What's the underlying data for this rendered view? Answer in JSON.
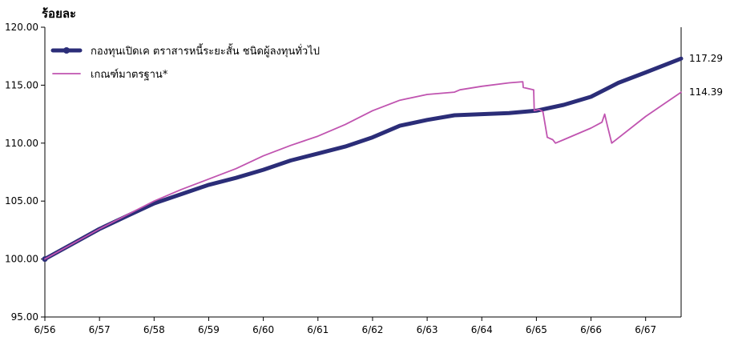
{
  "chart_data": {
    "type": "line",
    "title": "",
    "ylabel": "ร้อยละ",
    "xlabel": "",
    "ylim": [
      95,
      120
    ],
    "y_ticks": [
      "95.00",
      "100.00",
      "105.00",
      "110.00",
      "115.00",
      "120.00"
    ],
    "x_ticks": [
      "6/56",
      "6/57",
      "6/58",
      "6/59",
      "6/60",
      "6/61",
      "6/62",
      "6/63",
      "6/64",
      "6/65",
      "6/66",
      "6/67"
    ],
    "xlim": [
      0,
      11.65
    ],
    "grid": false,
    "legend_position": "top-left",
    "series": [
      {
        "name": "กองทุนเปิดเค ตราสารหนี้ระยะสั้น ชนิดผู้ลงทุนทั่วไป",
        "color": "#2b2d78",
        "end_label": "117.29",
        "points": [
          [
            0,
            100.0
          ],
          [
            0.5,
            101.3
          ],
          [
            1.0,
            102.6
          ],
          [
            1.5,
            103.7
          ],
          [
            2.0,
            104.8
          ],
          [
            2.5,
            105.6
          ],
          [
            3.0,
            106.4
          ],
          [
            3.5,
            107.0
          ],
          [
            4.0,
            107.7
          ],
          [
            4.5,
            108.5
          ],
          [
            5.0,
            109.1
          ],
          [
            5.5,
            109.7
          ],
          [
            6.0,
            110.5
          ],
          [
            6.5,
            111.5
          ],
          [
            7.0,
            112.0
          ],
          [
            7.5,
            112.4
          ],
          [
            8.0,
            112.5
          ],
          [
            8.5,
            112.6
          ],
          [
            9.0,
            112.8
          ],
          [
            9.5,
            113.3
          ],
          [
            10.0,
            114.0
          ],
          [
            10.5,
            115.2
          ],
          [
            11.0,
            116.1
          ],
          [
            11.65,
            117.29
          ]
        ]
      },
      {
        "name": "เกณฑ์มาตรฐาน*",
        "color": "#c054b0",
        "end_label": "114.39",
        "points": [
          [
            0,
            100.0
          ],
          [
            0.5,
            101.3
          ],
          [
            1.0,
            102.6
          ],
          [
            1.5,
            103.8
          ],
          [
            2.0,
            105.0
          ],
          [
            2.5,
            106.0
          ],
          [
            3.0,
            106.9
          ],
          [
            3.5,
            107.8
          ],
          [
            4.0,
            108.9
          ],
          [
            4.5,
            109.8
          ],
          [
            5.0,
            110.6
          ],
          [
            5.5,
            111.6
          ],
          [
            6.0,
            112.8
          ],
          [
            6.5,
            113.7
          ],
          [
            7.0,
            114.2
          ],
          [
            7.5,
            114.4
          ],
          [
            7.6,
            114.6
          ],
          [
            8.0,
            114.9
          ],
          [
            8.5,
            115.2
          ],
          [
            8.75,
            115.3
          ],
          [
            8.76,
            114.8
          ],
          [
            8.95,
            114.6
          ],
          [
            8.96,
            112.8
          ],
          [
            9.05,
            112.9
          ],
          [
            9.12,
            112.7
          ],
          [
            9.2,
            110.5
          ],
          [
            9.3,
            110.3
          ],
          [
            9.35,
            110.0
          ],
          [
            9.5,
            110.3
          ],
          [
            10.0,
            111.3
          ],
          [
            10.2,
            111.8
          ],
          [
            10.25,
            112.5
          ],
          [
            10.3,
            111.5
          ],
          [
            10.38,
            110.0
          ],
          [
            11.0,
            112.3
          ],
          [
            11.65,
            114.39
          ]
        ]
      }
    ]
  }
}
